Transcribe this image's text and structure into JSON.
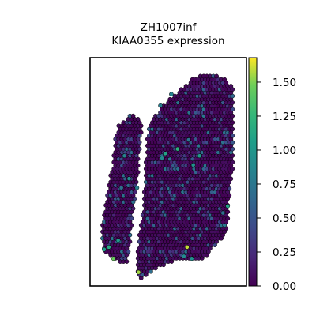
{
  "chart_data": {
    "type": "scatter",
    "title": [
      "ZH1007inf",
      "KIAA0355 expression"
    ],
    "xlabel": "",
    "ylabel": "",
    "x_ticks_visible": false,
    "y_ticks_visible": false,
    "colormap": "viridis",
    "colorbar": {
      "range": [
        0.0,
        1.68
      ],
      "ticks": [
        0.0,
        0.25,
        0.5,
        0.75,
        1.0,
        1.25,
        1.5
      ],
      "tick_labels": [
        "0.00",
        "0.25",
        "0.50",
        "0.75",
        "1.00",
        "1.25",
        "1.50"
      ]
    },
    "marker_edge_color": "#000000",
    "grid": false,
    "legend": "none",
    "notable_points": [
      {
        "x": 0.15,
        "y": 0.12,
        "value": 1.45
      },
      {
        "x": 0.62,
        "y": 0.17,
        "value": 1.6
      },
      {
        "x": 0.31,
        "y": 0.06,
        "value": 1.55
      },
      {
        "x": 0.12,
        "y": 0.17,
        "value": 1.15
      },
      {
        "x": 0.09,
        "y": 0.16,
        "value": 1.05
      },
      {
        "x": 0.18,
        "y": 0.2,
        "value": 1.0
      },
      {
        "x": 0.88,
        "y": 0.35,
        "value": 1.1
      },
      {
        "x": 0.7,
        "y": 0.57,
        "value": 1.05
      },
      {
        "x": 0.56,
        "y": 0.6,
        "value": 1.2
      },
      {
        "x": 0.48,
        "y": 0.58,
        "value": 1.1
      },
      {
        "x": 0.66,
        "y": 0.53,
        "value": 0.95
      },
      {
        "x": 0.46,
        "y": 0.56,
        "value": 0.9
      },
      {
        "x": 0.65,
        "y": 0.12,
        "value": 0.95
      },
      {
        "x": 0.6,
        "y": 0.13,
        "value": 0.9
      },
      {
        "x": 0.22,
        "y": 0.57,
        "value": 0.85
      },
      {
        "x": 0.25,
        "y": 0.47,
        "value": 0.9
      },
      {
        "x": 0.45,
        "y": 0.79,
        "value": 0.8
      },
      {
        "x": 0.63,
        "y": 0.64,
        "value": 0.75
      },
      {
        "x": 0.52,
        "y": 0.84,
        "value": 0.85
      },
      {
        "x": 0.85,
        "y": 0.32,
        "value": 0.7
      },
      {
        "x": 0.3,
        "y": 0.43,
        "value": 0.8
      },
      {
        "x": 0.2,
        "y": 0.43,
        "value": 0.7
      }
    ]
  }
}
